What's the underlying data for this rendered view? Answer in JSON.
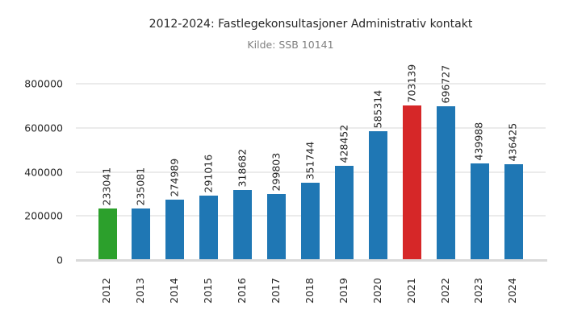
{
  "chart_data": {
    "type": "bar",
    "title": "2012-2024: Fastlegekonsultasjoner Administrativ kontakt",
    "subtitle": "Kilde: SSB 10141",
    "xlabel": "",
    "ylabel": "",
    "ylim": [
      0,
      800000
    ],
    "yticks": [
      0,
      200000,
      400000,
      600000,
      800000
    ],
    "ytick_labels": [
      "0",
      "200000",
      "400000",
      "600000",
      "800000"
    ],
    "grid": true,
    "categories": [
      "2012",
      "2013",
      "2014",
      "2015",
      "2016",
      "2017",
      "2018",
      "2019",
      "2020",
      "2021",
      "2022",
      "2023",
      "2024"
    ],
    "values": [
      233041,
      235081,
      274989,
      291016,
      318682,
      299803,
      351744,
      428452,
      585314,
      703139,
      696727,
      439988,
      436425
    ],
    "bar_colors": [
      "#2ca02c",
      "#1f77b4",
      "#1f77b4",
      "#1f77b4",
      "#1f77b4",
      "#1f77b4",
      "#1f77b4",
      "#1f77b4",
      "#1f77b4",
      "#d62728",
      "#1f77b4",
      "#1f77b4",
      "#1f77b4"
    ],
    "highlight": {
      "min_year": "2012",
      "min_color": "#2ca02c",
      "max_year": "2021",
      "max_color": "#d62728",
      "default_color": "#1f77b4"
    },
    "value_labels": [
      "233041",
      "235081",
      "274989",
      "291016",
      "318682",
      "299803",
      "351744",
      "428452",
      "585314",
      "703139",
      "696727",
      "439988",
      "436425"
    ]
  }
}
